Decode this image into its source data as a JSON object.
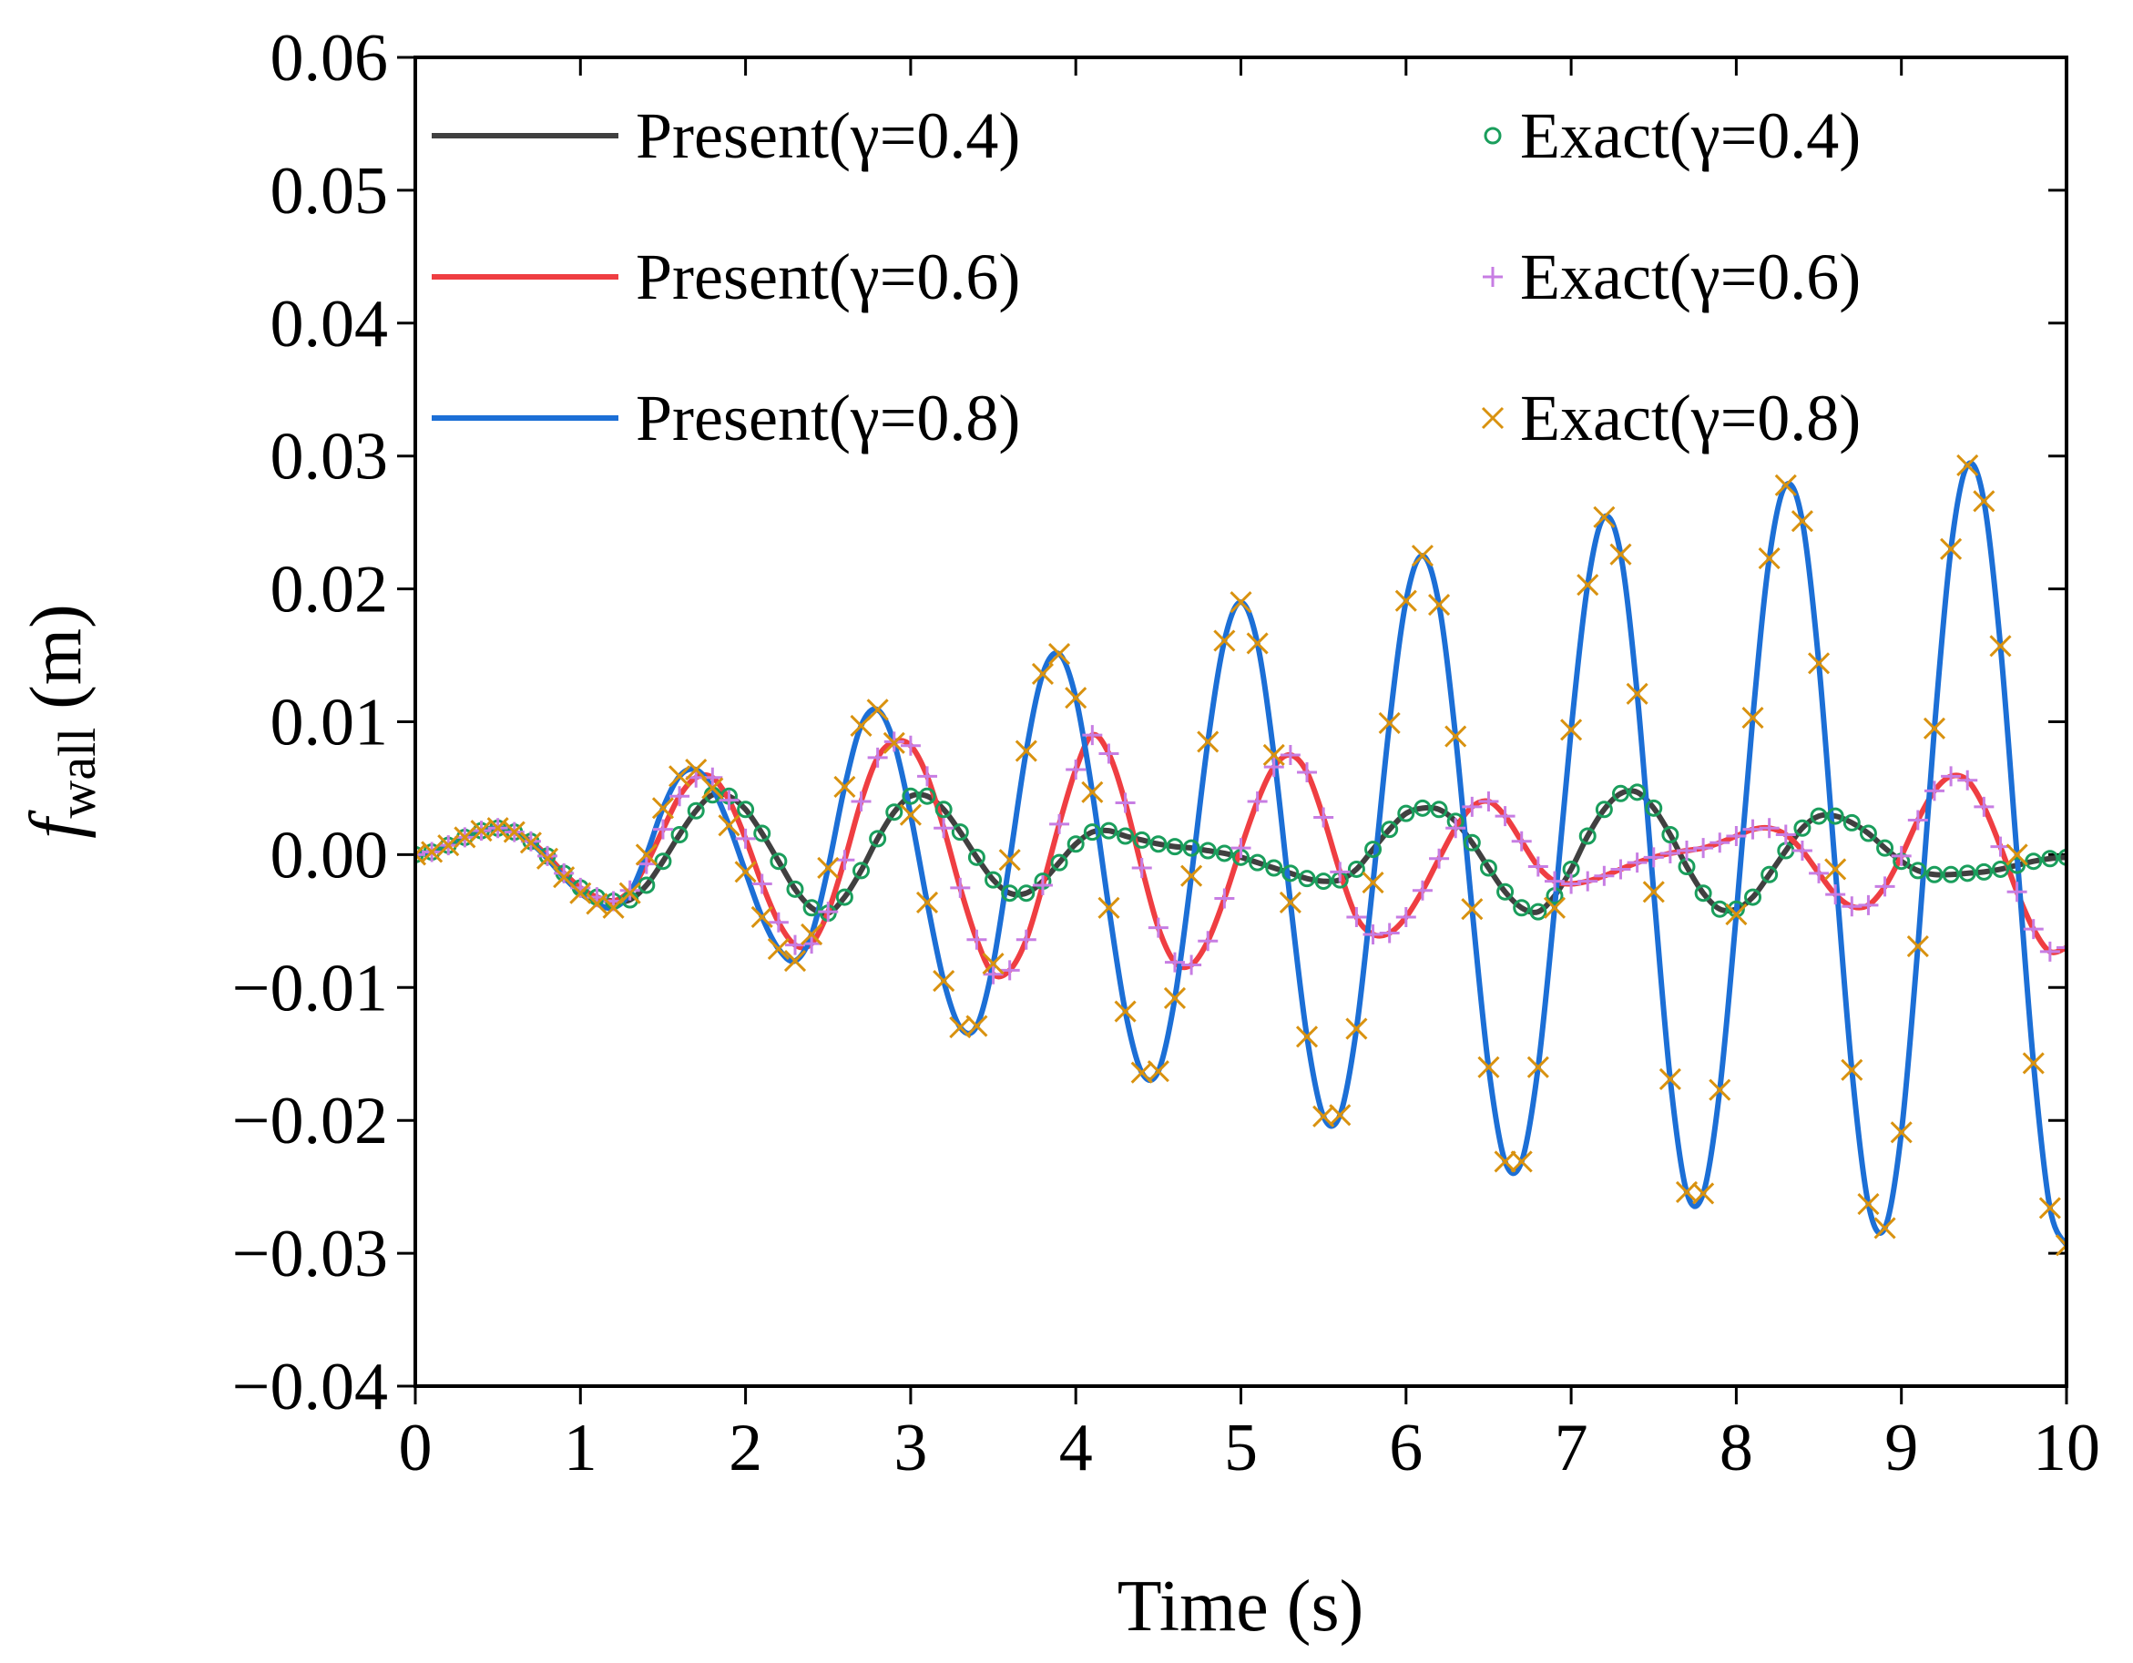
{
  "chart_data": {
    "type": "line",
    "xlabel": "Time (s)",
    "ylabel": {
      "symbol": "f",
      "subscript": "wall",
      "unit": " (m)"
    },
    "xlim": [
      0,
      10
    ],
    "ylim": [
      -0.04,
      0.06
    ],
    "xticks": [
      0,
      1,
      2,
      3,
      4,
      5,
      6,
      7,
      8,
      9,
      10
    ],
    "yticks": [
      {
        "value": -0.04,
        "label": "−0.04"
      },
      {
        "value": -0.03,
        "label": "−0.03"
      },
      {
        "value": -0.02,
        "label": "−0.02"
      },
      {
        "value": -0.01,
        "label": "−0.01"
      },
      {
        "value": 0,
        "label": "0.00"
      },
      0.01,
      0.02,
      0.03,
      0.04,
      0.05,
      0.06
    ],
    "grid": false,
    "legend": {
      "location": "upper left",
      "ncol": 2
    },
    "x": [
      0,
      0.1,
      0.2,
      0.3,
      0.4,
      0.5,
      0.6,
      0.7,
      0.8,
      0.9,
      1,
      1.1,
      1.2,
      1.3,
      1.4,
      1.5,
      1.6,
      1.7,
      1.8,
      1.9,
      2,
      2.1,
      2.2,
      2.3,
      2.4,
      2.5,
      2.6,
      2.7,
      2.8,
      2.9,
      3,
      3.1,
      3.2,
      3.3,
      3.4,
      3.5,
      3.6,
      3.7,
      3.8,
      3.9,
      4,
      4.1,
      4.2,
      4.3,
      4.4,
      4.5,
      4.6,
      4.7,
      4.8,
      4.9,
      5,
      5.1,
      5.2,
      5.3,
      5.4,
      5.5,
      5.6,
      5.7,
      5.8,
      5.9,
      6,
      6.1,
      6.2,
      6.3,
      6.4,
      6.5,
      6.6,
      6.7,
      6.8,
      6.9,
      7,
      7.1,
      7.2,
      7.3,
      7.4,
      7.5,
      7.6,
      7.7,
      7.8,
      7.9,
      8,
      8.1,
      8.2,
      8.3,
      8.4,
      8.5,
      8.6,
      8.7,
      8.8,
      8.9,
      9,
      9.1,
      9.2,
      9.3,
      9.4,
      9.5,
      9.6,
      9.7,
      9.8,
      9.9,
      10
    ],
    "series": [
      {
        "name": "Present(γ=0.4)",
        "mode": "line",
        "color": "#404040",
        "values": [
          0,
          0.0002,
          0.0007,
          0.0013,
          0.0018,
          0.002,
          0.0017,
          0.001,
          -0.0001,
          -0.0014,
          -0.0025,
          -0.0032,
          -0.0035,
          -0.0034,
          -0.0023,
          -0.0005,
          0.0015,
          0.0033,
          0.0045,
          0.0044,
          0.0034,
          0.0016,
          -0.0005,
          -0.0026,
          -0.004,
          -0.0044,
          -0.0032,
          -0.0012,
          0.0012,
          0.0032,
          0.0044,
          0.0044,
          0.0034,
          0.0017,
          -0.0002,
          -0.0019,
          -0.0029,
          -0.0029,
          -0.002,
          -0.0006,
          0.0008,
          0.0017,
          0.0018,
          0.0014,
          0.0011,
          0.0008,
          0.0006,
          0.0005,
          0.0003,
          0.0001,
          -0.0002,
          -0.0006,
          -0.001,
          -0.0014,
          -0.0018,
          -0.002,
          -0.0019,
          -0.0011,
          0.0004,
          0.0019,
          0.0031,
          0.0035,
          0.0034,
          0.0025,
          0.0009,
          -0.001,
          -0.0028,
          -0.004,
          -0.0043,
          -0.0031,
          -0.0011,
          0.0014,
          0.0034,
          0.0046,
          0.0047,
          0.0035,
          0.0015,
          -0.0009,
          -0.0029,
          -0.0041,
          -0.0041,
          -0.0032,
          -0.0015,
          0.0003,
          0.002,
          0.0029,
          0.0029,
          0.0024,
          0.0016,
          0.0005,
          -0.0005,
          -0.0012,
          -0.0015,
          -0.0015,
          -0.0014,
          -0.0013,
          -0.0011,
          -0.0008,
          -0.0005,
          -0.0003,
          -0.0002
        ]
      },
      {
        "name": "Present(γ=0.6)",
        "mode": "line",
        "color": "#ef3e42",
        "values": [
          0,
          0.0002,
          0.0007,
          0.0013,
          0.0018,
          0.002,
          0.0017,
          0.001,
          -0.0001,
          -0.0014,
          -0.0025,
          -0.0032,
          -0.0035,
          -0.0027,
          -0.0007,
          0.0019,
          0.0044,
          0.0058,
          0.0058,
          0.0041,
          0.0012,
          -0.0022,
          -0.0051,
          -0.0068,
          -0.0067,
          -0.0043,
          -0.0004,
          0.004,
          0.0073,
          0.0085,
          0.0082,
          0.0059,
          0.002,
          -0.0025,
          -0.0064,
          -0.009,
          -0.0087,
          -0.0064,
          -0.0023,
          0.0023,
          0.0064,
          0.009,
          0.0076,
          0.0039,
          -0.001,
          -0.0055,
          -0.0081,
          -0.0083,
          -0.0065,
          -0.0033,
          0.0005,
          0.004,
          0.0066,
          0.0075,
          0.0062,
          0.0028,
          -0.0013,
          -0.0047,
          -0.006,
          -0.0059,
          -0.0047,
          -0.0027,
          -0.0003,
          0.002,
          0.0036,
          0.004,
          0.0029,
          0.001,
          -0.0009,
          -0.002,
          -0.0022,
          -0.002,
          -0.0016,
          -0.0011,
          -0.0006,
          -0.0002,
          0.0001,
          0.0003,
          0.0005,
          0.0009,
          0.0014,
          0.0019,
          0.002,
          0.0015,
          0.0003,
          -0.0014,
          -0.003,
          -0.0039,
          -0.0038,
          -0.0024,
          -0.0001,
          0.0026,
          0.0048,
          0.0059,
          0.0056,
          0.0036,
          0.0006,
          -0.0028,
          -0.0056,
          -0.0073,
          -0.007
        ]
      },
      {
        "name": "Present(γ=0.8)",
        "mode": "line",
        "color": "#1c6fd6",
        "values": [
          0,
          0.0002,
          0.0007,
          0.0013,
          0.0018,
          0.002,
          0.0017,
          0.0009,
          -0.0003,
          -0.0017,
          -0.0029,
          -0.0037,
          -0.004,
          -0.0029,
          0,
          0.0035,
          0.0059,
          0.0064,
          0.005,
          0.0022,
          -0.0013,
          -0.0047,
          -0.0071,
          -0.008,
          -0.006,
          -0.001,
          0.0051,
          0.0097,
          0.0109,
          0.0084,
          0.003,
          -0.0036,
          -0.0095,
          -0.013,
          -0.0129,
          -0.0082,
          -0.0004,
          0.0078,
          0.0136,
          0.0151,
          0.0118,
          0.0047,
          -0.004,
          -0.0118,
          -0.0164,
          -0.0163,
          -0.0108,
          -0.0016,
          0.0085,
          0.0161,
          0.019,
          0.0159,
          0.0075,
          -0.0036,
          -0.0137,
          -0.0197,
          -0.0196,
          -0.0131,
          -0.0021,
          0.0099,
          0.0191,
          0.0225,
          0.0188,
          0.0089,
          -0.0041,
          -0.016,
          -0.0231,
          -0.0231,
          -0.016,
          -0.004,
          0.0094,
          0.0203,
          0.0254,
          0.0226,
          0.0121,
          -0.0028,
          -0.0169,
          -0.0254,
          -0.0255,
          -0.0177,
          -0.0045,
          0.0103,
          0.0223,
          0.0278,
          0.0251,
          0.0144,
          -0.0011,
          -0.0162,
          -0.0263,
          -0.0281,
          -0.0209,
          -0.0069,
          0.0095,
          0.023,
          0.0293,
          0.0266,
          0.0157,
          0,
          -0.0157,
          -0.0266,
          -0.0294
        ]
      },
      {
        "name": "Exact(γ=0.4)",
        "mode": "markers",
        "marker": "circle",
        "color": "#1a9e5c",
        "values": [
          0,
          0.0002,
          0.0007,
          0.0013,
          0.0018,
          0.002,
          0.0017,
          0.001,
          -0.0001,
          -0.0014,
          -0.0025,
          -0.0032,
          -0.0035,
          -0.0034,
          -0.0023,
          -0.0005,
          0.0015,
          0.0033,
          0.0045,
          0.0044,
          0.0034,
          0.0016,
          -0.0005,
          -0.0026,
          -0.004,
          -0.0044,
          -0.0032,
          -0.0012,
          0.0012,
          0.0032,
          0.0044,
          0.0044,
          0.0034,
          0.0017,
          -0.0002,
          -0.0019,
          -0.0029,
          -0.0029,
          -0.002,
          -0.0006,
          0.0008,
          0.0017,
          0.0018,
          0.0014,
          0.0011,
          0.0008,
          0.0006,
          0.0005,
          0.0003,
          0.0001,
          -0.0002,
          -0.0006,
          -0.001,
          -0.0014,
          -0.0018,
          -0.002,
          -0.0019,
          -0.0011,
          0.0004,
          0.0019,
          0.0031,
          0.0035,
          0.0034,
          0.0025,
          0.0009,
          -0.001,
          -0.0028,
          -0.004,
          -0.0043,
          -0.0031,
          -0.0011,
          0.0014,
          0.0034,
          0.0046,
          0.0047,
          0.0035,
          0.0015,
          -0.0009,
          -0.0029,
          -0.0041,
          -0.0041,
          -0.0032,
          -0.0015,
          0.0003,
          0.002,
          0.0029,
          0.0029,
          0.0024,
          0.0016,
          0.0005,
          -0.0005,
          -0.0012,
          -0.0015,
          -0.0015,
          -0.0014,
          -0.0013,
          -0.0011,
          -0.0008,
          -0.0005,
          -0.0003,
          -0.0002
        ]
      },
      {
        "name": "Exact(γ=0.6)",
        "mode": "markers",
        "marker": "plus",
        "color": "#c77de3",
        "values": [
          0,
          0.0002,
          0.0007,
          0.0013,
          0.0018,
          0.002,
          0.0017,
          0.001,
          -0.0001,
          -0.0014,
          -0.0025,
          -0.0032,
          -0.0035,
          -0.0027,
          -0.0007,
          0.0019,
          0.0044,
          0.0058,
          0.0058,
          0.0041,
          0.0012,
          -0.0022,
          -0.0051,
          -0.0068,
          -0.0067,
          -0.0043,
          -0.0004,
          0.004,
          0.0073,
          0.0085,
          0.0082,
          0.0059,
          0.002,
          -0.0025,
          -0.0064,
          -0.009,
          -0.0087,
          -0.0064,
          -0.0023,
          0.0023,
          0.0064,
          0.009,
          0.0076,
          0.0039,
          -0.001,
          -0.0055,
          -0.0081,
          -0.0083,
          -0.0065,
          -0.0033,
          0.0005,
          0.004,
          0.0066,
          0.0075,
          0.0062,
          0.0028,
          -0.0013,
          -0.0047,
          -0.006,
          -0.0059,
          -0.0047,
          -0.0027,
          -0.0003,
          0.002,
          0.0036,
          0.004,
          0.0029,
          0.001,
          -0.0009,
          -0.002,
          -0.0022,
          -0.002,
          -0.0016,
          -0.0011,
          -0.0006,
          -0.0002,
          0.0001,
          0.0003,
          0.0005,
          0.0009,
          0.0014,
          0.0019,
          0.002,
          0.0015,
          0.0003,
          -0.0014,
          -0.003,
          -0.0039,
          -0.0038,
          -0.0024,
          -0.0001,
          0.0026,
          0.0048,
          0.0059,
          0.0056,
          0.0036,
          0.0006,
          -0.0028,
          -0.0056,
          -0.0073,
          -0.007
        ]
      },
      {
        "name": "Exact(γ=0.8)",
        "mode": "markers",
        "marker": "x",
        "color": "#d9920f",
        "values": [
          0,
          0.0002,
          0.0007,
          0.0013,
          0.0018,
          0.002,
          0.0017,
          0.0009,
          -0.0003,
          -0.0017,
          -0.0029,
          -0.0037,
          -0.004,
          -0.0029,
          0,
          0.0035,
          0.0059,
          0.0064,
          0.005,
          0.0022,
          -0.0013,
          -0.0047,
          -0.0071,
          -0.008,
          -0.006,
          -0.001,
          0.0051,
          0.0097,
          0.0109,
          0.0084,
          0.003,
          -0.0036,
          -0.0095,
          -0.013,
          -0.0129,
          -0.0082,
          -0.0004,
          0.0078,
          0.0136,
          0.0151,
          0.0118,
          0.0047,
          -0.004,
          -0.0118,
          -0.0164,
          -0.0163,
          -0.0108,
          -0.0016,
          0.0085,
          0.0161,
          0.019,
          0.0159,
          0.0075,
          -0.0036,
          -0.0137,
          -0.0197,
          -0.0196,
          -0.0131,
          -0.0021,
          0.0099,
          0.0191,
          0.0225,
          0.0188,
          0.0089,
          -0.0041,
          -0.016,
          -0.0231,
          -0.0231,
          -0.016,
          -0.004,
          0.0094,
          0.0203,
          0.0254,
          0.0226,
          0.0121,
          -0.0028,
          -0.0169,
          -0.0254,
          -0.0255,
          -0.0177,
          -0.0045,
          0.0103,
          0.0223,
          0.0278,
          0.0251,
          0.0144,
          -0.0011,
          -0.0162,
          -0.0263,
          -0.0281,
          -0.0209,
          -0.0069,
          0.0095,
          0.023,
          0.0293,
          0.0266,
          0.0157,
          0,
          -0.0157,
          -0.0266,
          -0.0294
        ]
      }
    ]
  }
}
